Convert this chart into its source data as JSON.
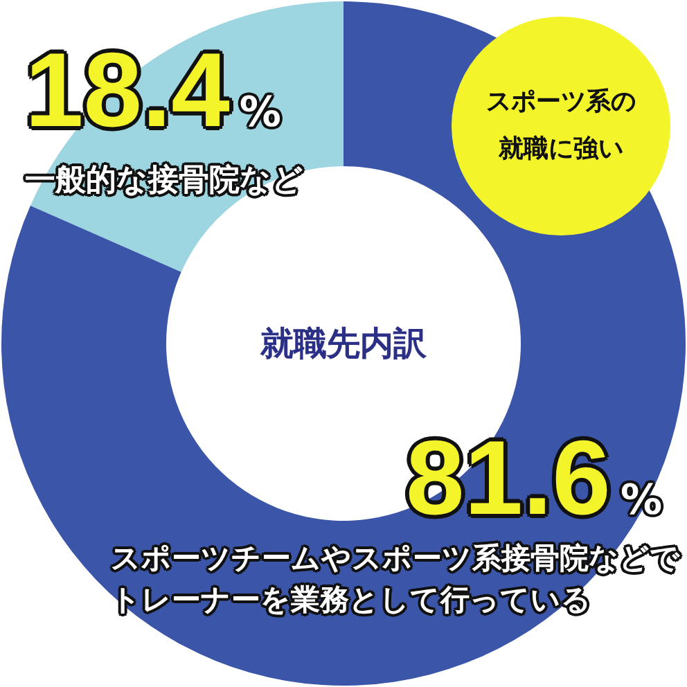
{
  "chart_data": {
    "type": "donut",
    "title": "就職先内訳",
    "categories": [
      "一般的な接骨院など",
      "スポーツチームやスポーツ系接骨院などでトレーナーを業務として行っている"
    ],
    "values": [
      18.4,
      81.6
    ],
    "colors": [
      "#9dd5e0",
      "#3b55a9"
    ],
    "value_labels": [
      "18.4%",
      "81.6%"
    ],
    "annotations": [
      "スポーツ系の就職に強い"
    ]
  }
}
